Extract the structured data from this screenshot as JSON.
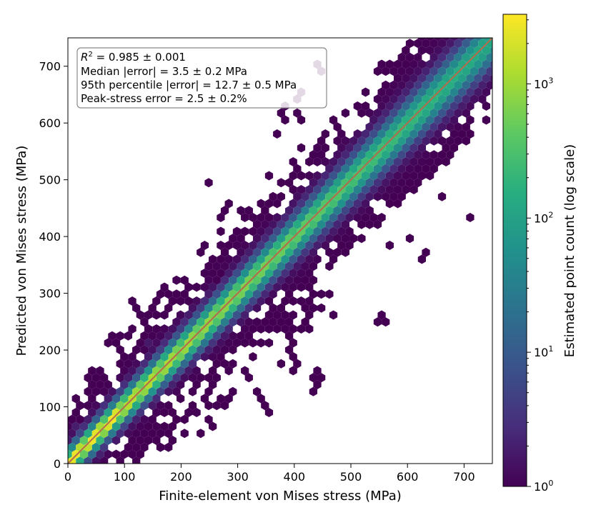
{
  "chart_data": {
    "type": "heatmap",
    "subtype": "hexbin",
    "title": "",
    "xlabel": "Finite-element von Mises stress (MPa)",
    "ylabel": "Predicted von Mises stress (MPa)",
    "xlim": [
      0,
      750
    ],
    "ylim": [
      0,
      750
    ],
    "xticks": [
      0,
      100,
      200,
      300,
      400,
      500,
      600,
      700
    ],
    "yticks": [
      0,
      100,
      200,
      300,
      400,
      500,
      600,
      700
    ],
    "grid": false,
    "reference_line": {
      "from": [
        0,
        0
      ],
      "to": [
        750,
        750
      ],
      "color": "#b5694e"
    },
    "colorbar": {
      "label": "Estimated point count (log scale)",
      "scale": "log",
      "range": [
        1,
        3300
      ],
      "ticks": [
        {
          "value": 1,
          "base": "10",
          "exp": "0"
        },
        {
          "value": 10,
          "base": "10",
          "exp": "1"
        },
        {
          "value": 100,
          "base": "10",
          "exp": "2"
        },
        {
          "value": 1000,
          "base": "10",
          "exp": "3"
        }
      ],
      "colormap": "viridis"
    },
    "annotation": {
      "r2_symbol": "R",
      "r2_exp": "2",
      "r2_text": " = 0.985 ± 0.001",
      "lines": [
        "Median |error| = 3.5 ± 0.2 MPa",
        "95th percentile |error| = 12.7 ± 0.5 MPa",
        "Peak-stress error = 2.5 ± 0.2%"
      ],
      "location": "upper-left"
    },
    "outlier_points": [
      [
        555,
        695
      ],
      [
        540,
        595
      ],
      [
        590,
        705
      ],
      [
        445,
        695
      ],
      [
        408,
        650
      ],
      [
        385,
        628
      ],
      [
        380,
        610
      ],
      [
        470,
        605
      ],
      [
        507,
        628
      ],
      [
        409,
        612
      ],
      [
        370,
        580
      ],
      [
        410,
        555
      ],
      [
        400,
        525
      ],
      [
        440,
        545
      ],
      [
        355,
        510
      ],
      [
        640,
        515
      ],
      [
        610,
        490
      ],
      [
        600,
        480
      ],
      [
        555,
        430
      ],
      [
        655,
        470
      ],
      [
        705,
        430
      ],
      [
        600,
        395
      ],
      [
        565,
        385
      ],
      [
        630,
        365
      ],
      [
        500,
        440
      ],
      [
        515,
        420
      ],
      [
        505,
        395
      ],
      [
        555,
        255
      ],
      [
        465,
        265
      ],
      [
        460,
        345
      ],
      [
        455,
        300
      ],
      [
        440,
        300
      ],
      [
        405,
        340
      ],
      [
        390,
        315
      ],
      [
        385,
        295
      ],
      [
        395,
        185
      ],
      [
        400,
        170
      ],
      [
        410,
        175
      ],
      [
        375,
        175
      ],
      [
        440,
        160
      ],
      [
        440,
        145
      ],
      [
        430,
        130
      ],
      [
        340,
        130
      ],
      [
        345,
        110
      ],
      [
        350,
        90
      ],
      [
        275,
        385
      ],
      [
        300,
        350
      ],
      [
        285,
        320
      ],
      [
        320,
        325
      ],
      [
        300,
        400
      ],
      [
        245,
        495
      ],
      [
        285,
        460
      ],
      [
        310,
        440
      ],
      [
        325,
        440
      ],
      [
        340,
        460
      ],
      [
        345,
        450
      ],
      [
        265,
        430
      ],
      [
        270,
        410
      ],
      [
        260,
        355
      ],
      [
        230,
        370
      ],
      [
        120,
        280
      ],
      [
        130,
        255
      ],
      [
        210,
        290
      ],
      [
        205,
        255
      ],
      [
        225,
        310
      ],
      [
        245,
        330
      ],
      [
        240,
        380
      ],
      [
        275,
        445
      ],
      [
        300,
        410
      ],
      [
        330,
        425
      ],
      [
        340,
        395
      ],
      [
        355,
        385
      ],
      [
        360,
        345
      ],
      [
        360,
        320
      ],
      [
        330,
        360
      ],
      [
        295,
        290
      ],
      [
        310,
        255
      ],
      [
        350,
        290
      ],
      [
        335,
        275
      ],
      [
        380,
        410
      ],
      [
        385,
        395
      ],
      [
        390,
        425
      ],
      [
        405,
        460
      ],
      [
        410,
        450
      ],
      [
        430,
        470
      ],
      [
        430,
        440
      ],
      [
        360,
        430
      ],
      [
        365,
        420
      ],
      [
        420,
        410
      ],
      [
        425,
        400
      ],
      [
        420,
        280
      ],
      [
        440,
        275
      ],
      [
        430,
        260
      ],
      [
        425,
        245
      ],
      [
        405,
        240
      ],
      [
        395,
        255
      ],
      [
        380,
        260
      ],
      [
        360,
        235
      ],
      [
        350,
        215
      ],
      [
        320,
        210
      ],
      [
        330,
        190
      ],
      [
        310,
        160
      ],
      [
        315,
        150
      ],
      [
        290,
        170
      ],
      [
        290,
        120
      ],
      [
        270,
        110
      ],
      [
        250,
        100
      ],
      [
        250,
        70
      ],
      [
        235,
        55
      ],
      [
        210,
        50
      ],
      [
        190,
        70
      ],
      [
        180,
        45
      ],
      [
        175,
        30
      ],
      [
        160,
        35
      ],
      [
        150,
        60
      ],
      [
        130,
        40
      ],
      [
        120,
        25
      ],
      [
        115,
        10
      ],
      [
        95,
        50
      ],
      [
        85,
        55
      ],
      [
        70,
        130
      ],
      [
        60,
        150
      ],
      [
        50,
        160
      ],
      [
        40,
        150
      ],
      [
        30,
        130
      ],
      [
        45,
        135
      ],
      [
        55,
        145
      ],
      [
        20,
        115
      ],
      [
        15,
        90
      ],
      [
        20,
        70
      ],
      [
        10,
        50
      ],
      [
        5,
        40
      ],
      [
        8,
        55
      ],
      [
        95,
        195
      ],
      [
        85,
        210
      ],
      [
        75,
        220
      ],
      [
        100,
        225
      ],
      [
        110,
        240
      ],
      [
        140,
        240
      ],
      [
        145,
        260
      ],
      [
        160,
        285
      ],
      [
        175,
        310
      ],
      [
        195,
        320
      ],
      [
        200,
        320
      ],
      [
        150,
        270
      ],
      [
        165,
        300
      ],
      [
        185,
        295
      ],
      [
        180,
        275
      ],
      [
        230,
        310
      ],
      [
        225,
        280
      ],
      [
        260,
        325
      ],
      [
        265,
        335
      ],
      [
        285,
        335
      ],
      [
        285,
        355
      ],
      [
        300,
        365
      ],
      [
        320,
        375
      ],
      [
        335,
        330
      ],
      [
        325,
        305
      ],
      [
        315,
        280
      ],
      [
        360,
        260
      ],
      [
        370,
        245
      ],
      [
        380,
        235
      ],
      [
        395,
        220
      ],
      [
        385,
        200
      ],
      [
        345,
        215
      ],
      [
        335,
        235
      ],
      [
        320,
        220
      ],
      [
        300,
        220
      ],
      [
        285,
        200
      ],
      [
        280,
        170
      ],
      [
        265,
        150
      ],
      [
        255,
        140
      ],
      [
        245,
        120
      ],
      [
        225,
        95
      ],
      [
        210,
        90
      ],
      [
        200,
        80
      ],
      [
        180,
        90
      ],
      [
        170,
        60
      ],
      [
        155,
        40
      ],
      [
        140,
        35
      ],
      [
        125,
        20
      ],
      [
        105,
        15
      ],
      [
        95,
        10
      ],
      [
        85,
        15
      ],
      [
        80,
        20
      ],
      [
        70,
        30
      ],
      [
        60,
        40
      ],
      [
        50,
        45
      ],
      [
        45,
        60
      ],
      [
        60,
        70
      ],
      [
        75,
        60
      ],
      [
        90,
        75
      ],
      [
        105,
        90
      ],
      [
        120,
        100
      ],
      [
        130,
        110
      ],
      [
        150,
        120
      ],
      [
        165,
        140
      ],
      [
        185,
        150
      ],
      [
        200,
        175
      ],
      [
        215,
        185
      ],
      [
        235,
        205
      ],
      [
        250,
        220
      ],
      [
        260,
        245
      ],
      [
        275,
        260
      ],
      [
        290,
        270
      ],
      [
        310,
        290
      ],
      [
        320,
        305
      ],
      [
        340,
        320
      ],
      [
        350,
        340
      ],
      [
        365,
        360
      ],
      [
        380,
        375
      ],
      [
        395,
        390
      ],
      [
        410,
        400
      ],
      [
        430,
        420
      ],
      [
        445,
        440
      ],
      [
        460,
        455
      ],
      [
        475,
        470
      ],
      [
        490,
        490
      ],
      [
        505,
        500
      ],
      [
        520,
        520
      ],
      [
        535,
        530
      ],
      [
        550,
        550
      ],
      [
        560,
        570
      ],
      [
        575,
        580
      ],
      [
        585,
        590
      ],
      [
        600,
        600
      ],
      [
        615,
        620
      ],
      [
        625,
        630
      ],
      [
        640,
        645
      ],
      [
        655,
        660
      ],
      [
        665,
        670
      ],
      [
        680,
        680
      ],
      [
        695,
        700
      ],
      [
        705,
        705
      ],
      [
        715,
        720
      ]
    ]
  }
}
